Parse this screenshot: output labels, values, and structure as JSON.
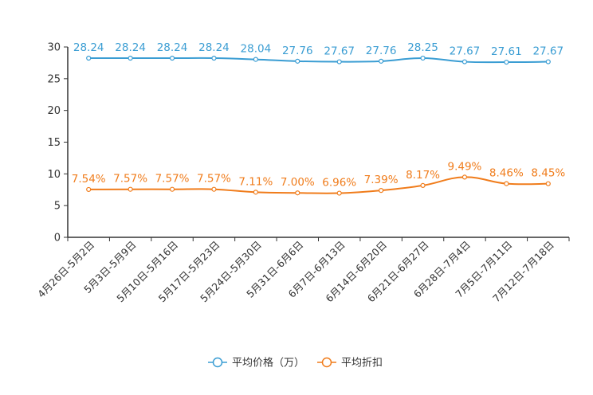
{
  "chart_data": {
    "type": "line",
    "categories": [
      "4月26日-5月2日",
      "5月3日-5月9日",
      "5月10日-5月16日",
      "5月17日-5月23日",
      "5月24日-5月30日",
      "5月31日-6月6日",
      "6月7日-6月13日",
      "6月14日-6月20日",
      "6月21日-6月27日",
      "6月28日-7月4日",
      "7月5日-7月11日",
      "7月12日-7月18日"
    ],
    "ylim": [
      0,
      30
    ],
    "yticks": [
      0,
      5,
      10,
      15,
      20,
      25,
      30
    ],
    "series": [
      {
        "name": "平均价格（万）",
        "color": "#3a9dd3",
        "values": [
          28.24,
          28.24,
          28.24,
          28.24,
          28.04,
          27.76,
          27.67,
          27.76,
          28.25,
          27.67,
          27.61,
          27.67
        ],
        "labels": [
          "28.24",
          "28.24",
          "28.24",
          "28.24",
          "28.04",
          "27.76",
          "27.67",
          "27.76",
          "28.25",
          "27.67",
          "27.61",
          "27.67"
        ]
      },
      {
        "name": "平均折扣",
        "color": "#f07c1b",
        "values": [
          7.54,
          7.57,
          7.57,
          7.57,
          7.11,
          7.0,
          6.96,
          7.39,
          8.17,
          9.49,
          8.46,
          8.45
        ],
        "labels": [
          "7.54%",
          "7.57%",
          "7.57%",
          "7.57%",
          "7.11%",
          "7.00%",
          "6.96%",
          "7.39%",
          "8.17%",
          "9.49%",
          "8.46%",
          "8.45%"
        ]
      }
    ]
  }
}
